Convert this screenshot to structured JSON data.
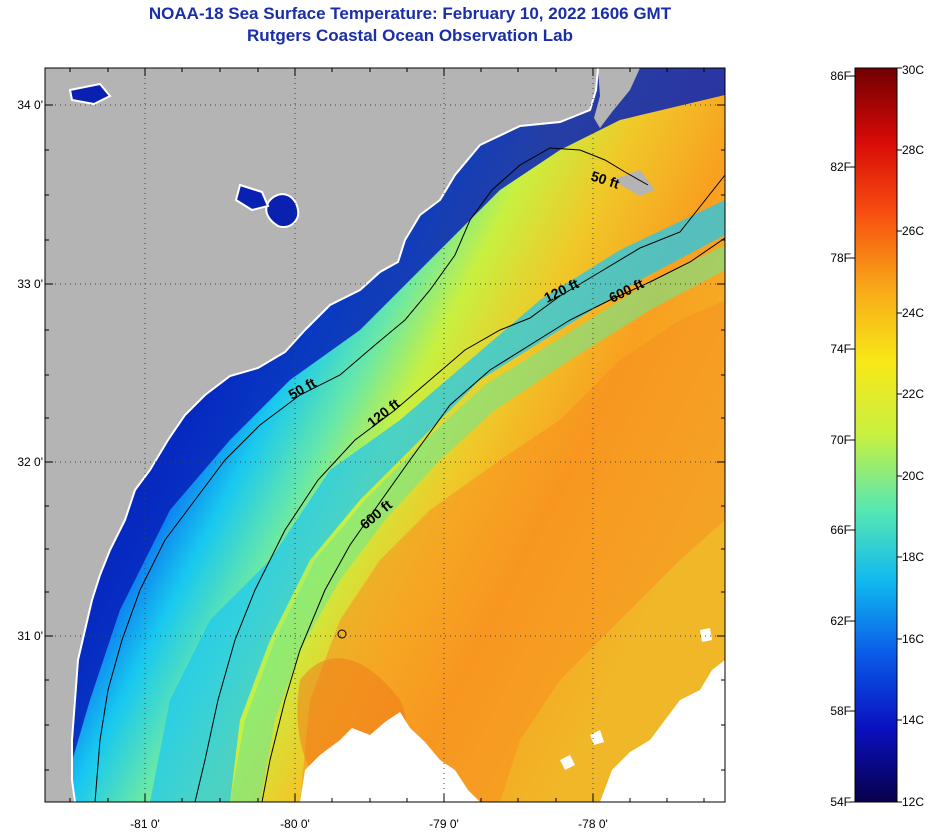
{
  "header": {
    "title": "NOAA-18 Sea Surface Temperature:  February 10, 2022 1606 GMT",
    "subtitle": "Rutgers Coastal Ocean Observation Lab"
  },
  "map": {
    "lat_labels": [
      "34 0'",
      "33 0'",
      "32 0'",
      "31 0'"
    ],
    "lon_labels": [
      "-81 0'",
      "-80 0'",
      "-79 0'",
      "-78 0'"
    ],
    "contours": [
      {
        "id": "50-north",
        "label": "50 ft"
      },
      {
        "id": "50-mid",
        "label": "50 ft"
      },
      {
        "id": "120-north",
        "label": "120 ft"
      },
      {
        "id": "120-mid",
        "label": "120 ft"
      },
      {
        "id": "600-north",
        "label": "600 ft"
      },
      {
        "id": "600-mid",
        "label": "600 ft"
      }
    ],
    "colors": {
      "land": "#b4b4b4",
      "cloud": "#ffffff",
      "contour": "#000000"
    }
  },
  "colorbar": {
    "fahrenheit_labels": [
      "86F",
      "82F",
      "78F",
      "74F",
      "70F",
      "66F",
      "62F",
      "58F",
      "54F"
    ],
    "celsius_labels": [
      "30C",
      "28C",
      "26C",
      "24C",
      "22C",
      "20C",
      "18C",
      "16C",
      "14C",
      "12C"
    ],
    "range_c": [
      12,
      30
    ],
    "range_f": [
      54,
      86
    ],
    "gradient": [
      "#08004a",
      "#0a10c0",
      "#0a5ae8",
      "#10b8f0",
      "#58e8b0",
      "#c8f040",
      "#f8e818",
      "#f8a818",
      "#f85010",
      "#d80a08",
      "#700000"
    ]
  }
}
